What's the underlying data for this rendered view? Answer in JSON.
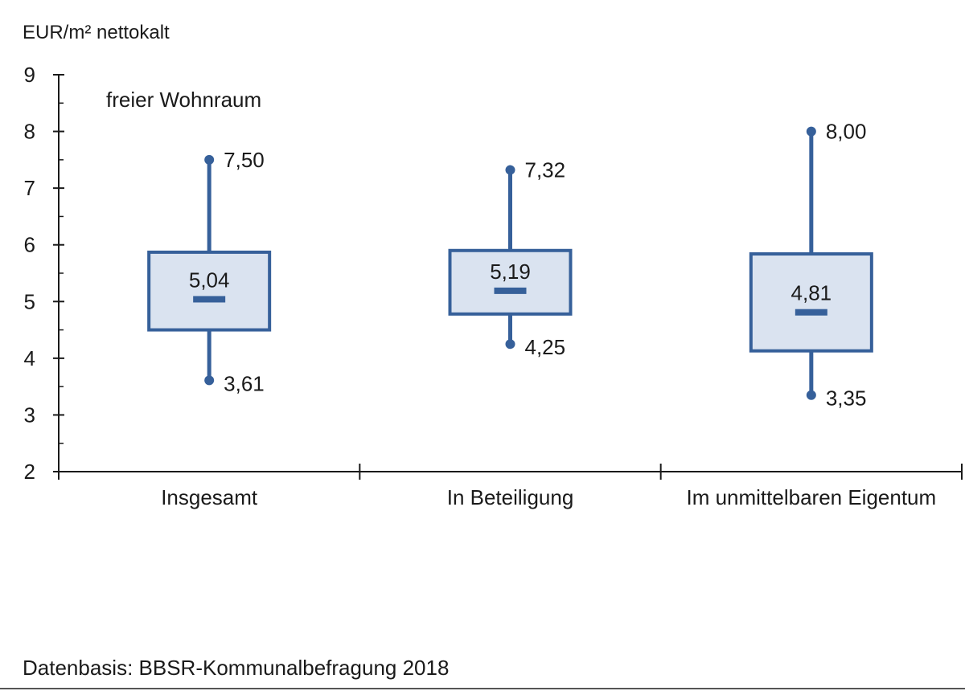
{
  "chart_data": {
    "type": "boxplot",
    "ylabel": "EUR/m² nettokalt",
    "annotation": "freier Wohnraum",
    "ylim": [
      2,
      9
    ],
    "yticks": [
      2,
      3,
      4,
      5,
      6,
      7,
      8,
      9
    ],
    "categories": [
      "Insgesamt",
      "In Beteiligung",
      "Im unmittelbaren Eigentum"
    ],
    "boxes": [
      {
        "category": "Insgesamt",
        "min": 3.61,
        "q1": 4.5,
        "median": 5.04,
        "q3": 5.87,
        "max": 7.5,
        "min_label": "3,61",
        "median_label": "5,04",
        "max_label": "7,50"
      },
      {
        "category": "In Beteiligung",
        "min": 4.25,
        "q1": 4.78,
        "median": 5.19,
        "q3": 5.9,
        "max": 7.32,
        "min_label": "4,25",
        "median_label": "5,19",
        "max_label": "7,32"
      },
      {
        "category": "Im unmittelbaren Eigentum",
        "min": 3.35,
        "q1": 4.13,
        "median": 4.81,
        "q3": 5.84,
        "max": 8.0,
        "min_label": "3,35",
        "median_label": "4,81",
        "max_label": "8,00"
      }
    ],
    "colors": {
      "stroke": "#36609a",
      "fill": "#dae3f0",
      "axis": "#1a1a1a"
    },
    "grid": false,
    "legend": "none"
  },
  "footer": {
    "source": "Datenbasis: BBSR-Kommunalbefragung 2018"
  }
}
